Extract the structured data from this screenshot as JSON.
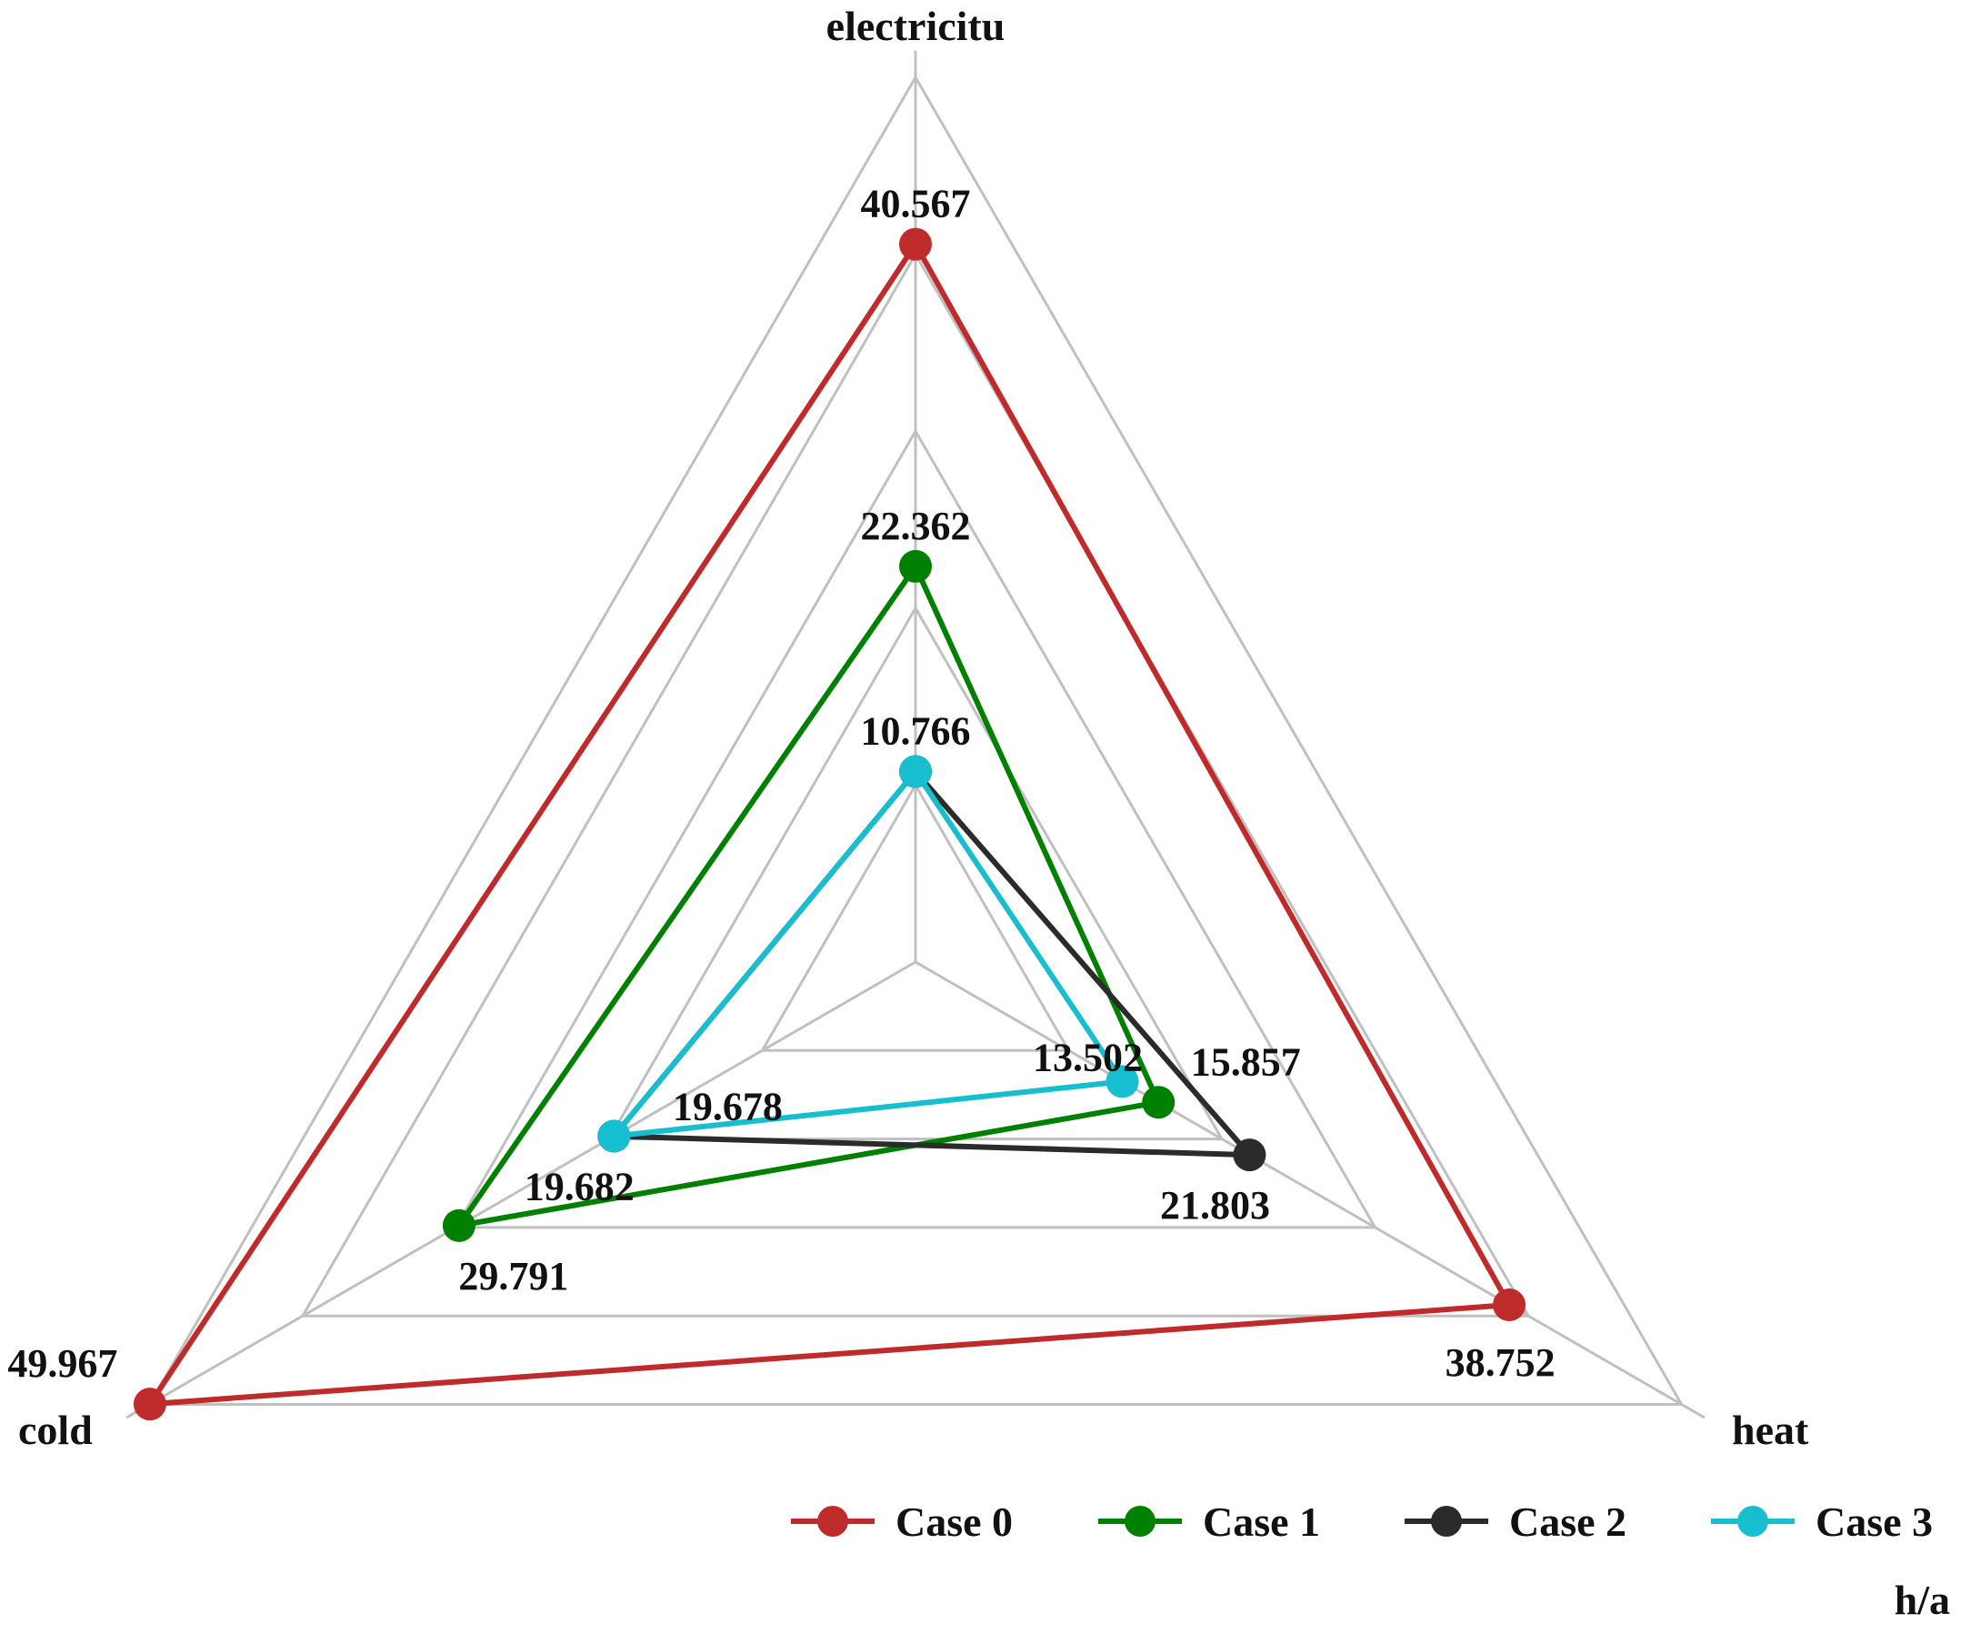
{
  "chart_data": {
    "type": "radar",
    "title": "",
    "unit_label": "h/a",
    "axes": [
      "electricitu",
      "heat",
      "cold"
    ],
    "rmax": 50,
    "rings": [
      10,
      20,
      30,
      40,
      50
    ],
    "grid": true,
    "grid_color": "#c0c0c0",
    "legend_position": "bottom-right",
    "series": [
      {
        "name": "Case 0",
        "color": "#bf2a2a",
        "values": [
          40.567,
          38.752,
          49.967
        ],
        "labels": [
          "40.567",
          "38.752",
          "49.967"
        ]
      },
      {
        "name": "Case 1",
        "color": "#008000",
        "values": [
          22.362,
          15.857,
          29.791
        ],
        "labels": [
          "22.362",
          "15.857",
          "29.791"
        ]
      },
      {
        "name": "Case 2",
        "color": "#2b2b2b",
        "values": [
          10.766,
          21.803,
          19.682
        ],
        "labels": [
          "",
          "21.803",
          "19.682"
        ]
      },
      {
        "name": "Case 3",
        "color": "#17becf",
        "values": [
          10.766,
          13.502,
          19.678
        ],
        "labels": [
          "10.766",
          "13.502",
          "19.678"
        ]
      }
    ]
  }
}
